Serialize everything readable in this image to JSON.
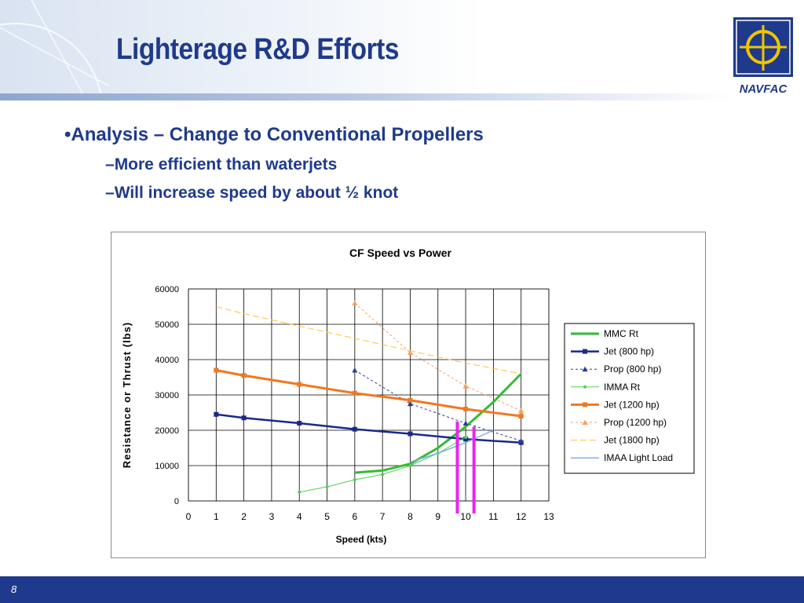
{
  "slide": {
    "title": "Lighterage R&D Efforts",
    "bullets": [
      {
        "text": "Analysis – Change to Conventional Propellers",
        "level": 1
      },
      {
        "text": "More efficient than waterjets",
        "level": 2
      },
      {
        "text": "Will increase speed by about ½ knot",
        "level": 2
      }
    ],
    "page_number": "8",
    "logo_text": "NAVFAC"
  },
  "colors": {
    "title": "#1f3a8c",
    "footer": "#1f3a8c",
    "logo_bg": "#1f3a8c",
    "logo_accent": "#f2c400"
  },
  "icons": [
    "navfac-logo-icon"
  ],
  "chart_data": {
    "type": "line",
    "title": "CF Speed vs Power",
    "xlabel": "Speed (kts)",
    "ylabel": "Resistance or Thrust (lbs)",
    "xlim": [
      0,
      13
    ],
    "ylim": [
      0,
      60000
    ],
    "xticks": [
      0,
      1,
      2,
      3,
      4,
      5,
      6,
      7,
      8,
      9,
      10,
      11,
      12,
      13
    ],
    "yticks": [
      0,
      10000,
      20000,
      30000,
      40000,
      50000,
      60000
    ],
    "grid": true,
    "legend_position": "right",
    "series": [
      {
        "name": "MMC Rt",
        "color": "#33bb33",
        "width": 3,
        "dash": "",
        "marker": "none",
        "x": [
          6,
          7,
          8,
          9,
          10,
          11,
          12
        ],
        "y": [
          8000,
          8600,
          10500,
          15000,
          21000,
          28000,
          36000
        ]
      },
      {
        "name": "Jet (800 hp)",
        "color": "#1a2a8a",
        "width": 2.5,
        "dash": "",
        "marker": "square",
        "x": [
          1,
          2,
          4,
          6,
          8,
          10,
          12
        ],
        "y": [
          24500,
          23500,
          22000,
          20300,
          19000,
          17500,
          16500
        ]
      },
      {
        "name": "Prop (800 hp)",
        "color": "#2a3a9a",
        "width": 1,
        "dash": "3,3",
        "marker": "triangle",
        "x": [
          6,
          8,
          10,
          12
        ],
        "y": [
          37000,
          27500,
          22000,
          17000
        ]
      },
      {
        "name": "IMMA Rt",
        "color": "#55cc55",
        "width": 1,
        "dash": "",
        "marker": "circle",
        "x": [
          4,
          5,
          6,
          7,
          8,
          9,
          10
        ],
        "y": [
          2500,
          4000,
          6000,
          7500,
          10000,
          13500,
          18000
        ]
      },
      {
        "name": "Jet (1200 hp)",
        "color": "#f07820",
        "width": 3,
        "dash": "",
        "marker": "square",
        "x": [
          1,
          2,
          4,
          6,
          8,
          10,
          12
        ],
        "y": [
          37000,
          35500,
          33000,
          30500,
          28500,
          26000,
          24000
        ]
      },
      {
        "name": "Prop (1200 hp)",
        "color": "#f5a060",
        "width": 1,
        "dash": "3,3",
        "marker": "triangle",
        "x": [
          6,
          8,
          10,
          12
        ],
        "y": [
          56000,
          42000,
          32500,
          25500
        ]
      },
      {
        "name": "Jet (1800 hp)",
        "color": "#ffc040",
        "width": 1,
        "dash": "8,4",
        "marker": "none",
        "x": [
          1,
          2,
          4,
          6,
          8,
          10,
          12
        ],
        "y": [
          55000,
          53000,
          49500,
          46000,
          42500,
          39000,
          36000
        ]
      },
      {
        "name": "IMAA Light Load",
        "color": "#88aaee",
        "width": 1.5,
        "dash": "",
        "marker": "none",
        "x": [
          8,
          9,
          10,
          11
        ],
        "y": [
          11000,
          13500,
          16500,
          20000
        ]
      }
    ],
    "annotations": [
      {
        "type": "vertical-bar",
        "x": 9.7,
        "y_top": 22500,
        "color": "#ee22ee"
      },
      {
        "type": "vertical-bar",
        "x": 10.3,
        "y_top": 21000,
        "color": "#ee22ee"
      }
    ]
  }
}
